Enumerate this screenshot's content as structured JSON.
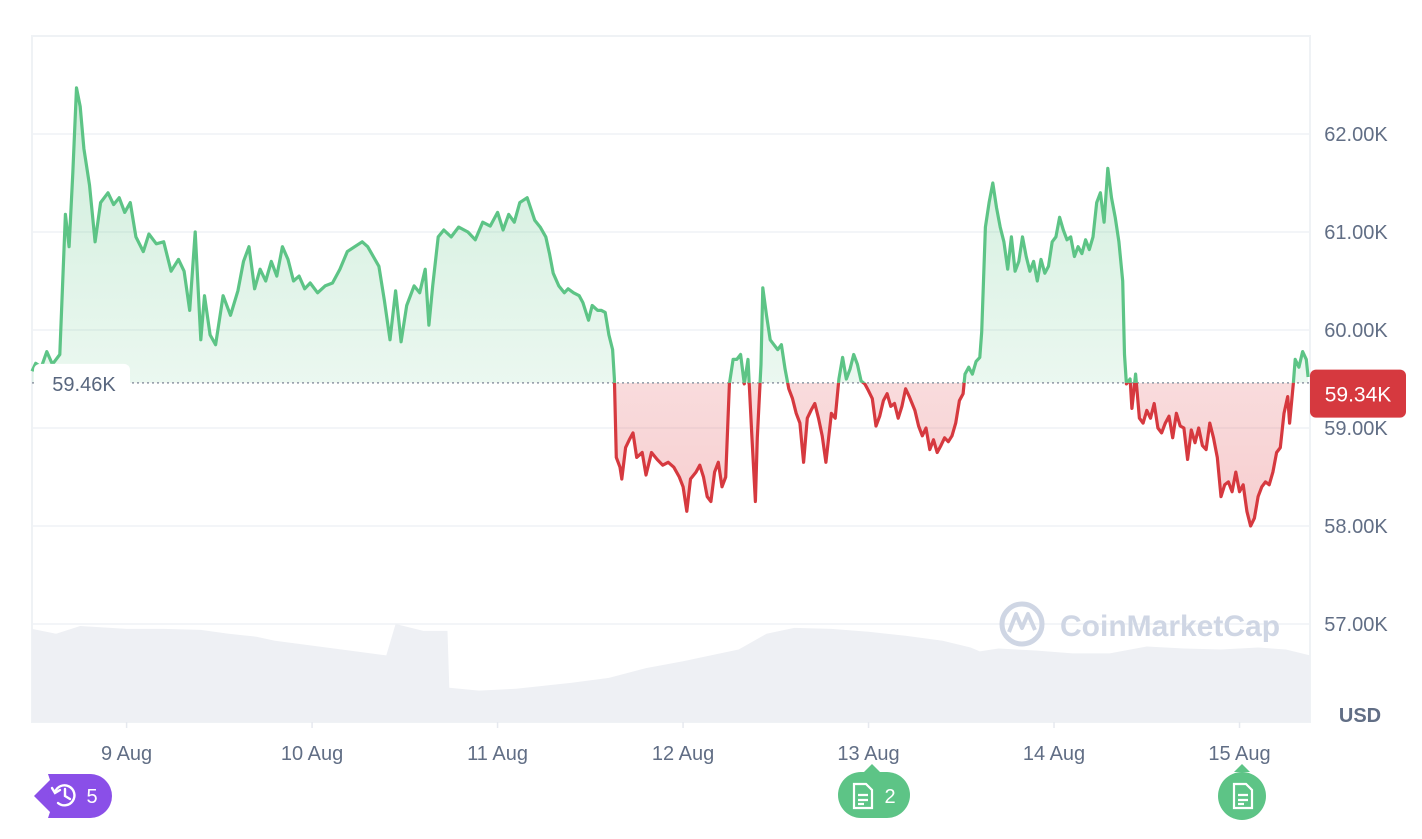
{
  "chart_data": {
    "type": "line",
    "x_tick_labels": [
      "9 Aug",
      "10 Aug",
      "11 Aug",
      "12 Aug",
      "13 Aug",
      "14 Aug",
      "15 Aug"
    ],
    "y_tick_labels": [
      "62.00K",
      "61.00K",
      "60.00K",
      "59.00K",
      "58.00K",
      "57.00K"
    ],
    "y_ticks": [
      62000,
      61000,
      60000,
      59000,
      58000,
      57000
    ],
    "ylim": [
      56000,
      63000
    ],
    "xlim_days": [
      8.49,
      15.38
    ],
    "currency_label": "USD",
    "baseline_value": 59460,
    "baseline_label": "59.46K",
    "current_value": 59340,
    "current_label": "59.34K",
    "grid": true,
    "colors": {
      "up": "#5dc486",
      "down": "#d6393f",
      "up_fill": "#5dc486",
      "down_fill": "#e35a5f",
      "volume": "#eef0f4",
      "grid": "#eff2f5",
      "badge_purple": "#8a4fe8",
      "badge_green": "#5dc486"
    },
    "price": [
      [
        8.49,
        59.58
      ],
      [
        8.51,
        59.66
      ],
      [
        8.54,
        59.62
      ],
      [
        8.57,
        59.78
      ],
      [
        8.6,
        59.65
      ],
      [
        8.64,
        59.75
      ],
      [
        8.67,
        61.18
      ],
      [
        8.69,
        60.85
      ],
      [
        8.71,
        61.6
      ],
      [
        8.73,
        62.47
      ],
      [
        8.75,
        62.28
      ],
      [
        8.77,
        61.85
      ],
      [
        8.8,
        61.48
      ],
      [
        8.83,
        60.9
      ],
      [
        8.86,
        61.3
      ],
      [
        8.9,
        61.4
      ],
      [
        8.93,
        61.28
      ],
      [
        8.96,
        61.35
      ],
      [
        8.99,
        61.2
      ],
      [
        9.02,
        61.3
      ],
      [
        9.05,
        60.95
      ],
      [
        9.09,
        60.8
      ],
      [
        9.12,
        60.98
      ],
      [
        9.16,
        60.88
      ],
      [
        9.2,
        60.9
      ],
      [
        9.24,
        60.6
      ],
      [
        9.28,
        60.72
      ],
      [
        9.31,
        60.6
      ],
      [
        9.34,
        60.2
      ],
      [
        9.37,
        61.0
      ],
      [
        9.4,
        59.9
      ],
      [
        9.42,
        60.35
      ],
      [
        9.45,
        59.95
      ],
      [
        9.48,
        59.85
      ],
      [
        9.52,
        60.35
      ],
      [
        9.56,
        60.15
      ],
      [
        9.6,
        60.4
      ],
      [
        9.63,
        60.7
      ],
      [
        9.66,
        60.85
      ],
      [
        9.69,
        60.42
      ],
      [
        9.72,
        60.62
      ],
      [
        9.75,
        60.5
      ],
      [
        9.78,
        60.7
      ],
      [
        9.81,
        60.55
      ],
      [
        9.84,
        60.85
      ],
      [
        9.87,
        60.72
      ],
      [
        9.9,
        60.5
      ],
      [
        9.93,
        60.55
      ],
      [
        9.96,
        60.42
      ],
      [
        9.99,
        60.48
      ],
      [
        10.03,
        60.38
      ],
      [
        10.07,
        60.45
      ],
      [
        10.11,
        60.48
      ],
      [
        10.15,
        60.62
      ],
      [
        10.19,
        60.8
      ],
      [
        10.23,
        60.85
      ],
      [
        10.27,
        60.9
      ],
      [
        10.3,
        60.85
      ],
      [
        10.33,
        60.75
      ],
      [
        10.36,
        60.65
      ],
      [
        10.39,
        60.3
      ],
      [
        10.42,
        59.9
      ],
      [
        10.45,
        60.4
      ],
      [
        10.48,
        59.88
      ],
      [
        10.51,
        60.25
      ],
      [
        10.55,
        60.45
      ],
      [
        10.58,
        60.38
      ],
      [
        10.61,
        60.62
      ],
      [
        10.63,
        60.05
      ],
      [
        10.65,
        60.45
      ],
      [
        10.68,
        60.95
      ],
      [
        10.71,
        61.02
      ],
      [
        10.75,
        60.95
      ],
      [
        10.79,
        61.05
      ],
      [
        10.84,
        61.0
      ],
      [
        10.88,
        60.92
      ],
      [
        10.92,
        61.1
      ],
      [
        10.96,
        61.06
      ],
      [
        11.0,
        61.2
      ],
      [
        11.03,
        61.02
      ],
      [
        11.06,
        61.18
      ],
      [
        11.09,
        61.1
      ],
      [
        11.12,
        61.3
      ],
      [
        11.16,
        61.35
      ],
      [
        11.2,
        61.12
      ],
      [
        11.23,
        61.05
      ],
      [
        11.26,
        60.95
      ],
      [
        11.28,
        60.78
      ],
      [
        11.3,
        60.58
      ],
      [
        11.33,
        60.45
      ],
      [
        11.36,
        60.38
      ],
      [
        11.38,
        60.42
      ],
      [
        11.41,
        60.38
      ],
      [
        11.44,
        60.35
      ],
      [
        11.46,
        60.28
      ],
      [
        11.49,
        60.1
      ],
      [
        11.51,
        60.25
      ],
      [
        11.54,
        60.2
      ],
      [
        11.56,
        60.2
      ],
      [
        11.58,
        60.18
      ],
      [
        11.6,
        59.95
      ],
      [
        11.62,
        59.8
      ],
      [
        11.63,
        59.5
      ],
      [
        11.64,
        58.7
      ],
      [
        11.66,
        58.6
      ],
      [
        11.67,
        58.48
      ],
      [
        11.69,
        58.8
      ],
      [
        11.71,
        58.88
      ],
      [
        11.73,
        58.95
      ],
      [
        11.75,
        58.7
      ],
      [
        11.78,
        58.75
      ],
      [
        11.8,
        58.52
      ],
      [
        11.83,
        58.75
      ],
      [
        11.86,
        58.68
      ],
      [
        11.89,
        58.62
      ],
      [
        11.92,
        58.65
      ],
      [
        11.95,
        58.6
      ],
      [
        11.98,
        58.5
      ],
      [
        12.0,
        58.4
      ],
      [
        12.02,
        58.15
      ],
      [
        12.04,
        58.48
      ],
      [
        12.07,
        58.55
      ],
      [
        12.09,
        58.62
      ],
      [
        12.11,
        58.5
      ],
      [
        12.13,
        58.3
      ],
      [
        12.15,
        58.25
      ],
      [
        12.17,
        58.55
      ],
      [
        12.19,
        58.65
      ],
      [
        12.21,
        58.4
      ],
      [
        12.23,
        58.5
      ],
      [
        12.25,
        59.45
      ],
      [
        12.27,
        59.7
      ],
      [
        12.29,
        59.7
      ],
      [
        12.31,
        59.75
      ],
      [
        12.33,
        59.45
      ],
      [
        12.35,
        59.7
      ],
      [
        12.37,
        58.95
      ],
      [
        12.39,
        58.25
      ],
      [
        12.4,
        58.9
      ],
      [
        12.42,
        59.65
      ],
      [
        12.43,
        60.43
      ],
      [
        12.45,
        60.15
      ],
      [
        12.47,
        59.9
      ],
      [
        12.49,
        59.85
      ],
      [
        12.51,
        59.8
      ],
      [
        12.53,
        59.85
      ],
      [
        12.55,
        59.6
      ],
      [
        12.57,
        59.4
      ],
      [
        12.59,
        59.3
      ],
      [
        12.61,
        59.15
      ],
      [
        12.63,
        59.05
      ],
      [
        12.65,
        58.65
      ],
      [
        12.67,
        59.1
      ],
      [
        12.69,
        59.18
      ],
      [
        12.71,
        59.25
      ],
      [
        12.73,
        59.1
      ],
      [
        12.75,
        58.92
      ],
      [
        12.77,
        58.65
      ],
      [
        12.8,
        59.15
      ],
      [
        12.82,
        59.1
      ],
      [
        12.84,
        59.5
      ],
      [
        12.86,
        59.72
      ],
      [
        12.88,
        59.5
      ],
      [
        12.9,
        59.6
      ],
      [
        12.92,
        59.75
      ],
      [
        12.94,
        59.65
      ],
      [
        12.96,
        59.48
      ],
      [
        12.98,
        59.45
      ],
      [
        13.0,
        59.38
      ],
      [
        13.02,
        59.3
      ],
      [
        13.04,
        59.02
      ],
      [
        13.06,
        59.12
      ],
      [
        13.08,
        59.28
      ],
      [
        13.1,
        59.35
      ],
      [
        13.12,
        59.22
      ],
      [
        13.14,
        59.25
      ],
      [
        13.16,
        59.1
      ],
      [
        13.18,
        59.22
      ],
      [
        13.2,
        59.4
      ],
      [
        13.22,
        59.32
      ],
      [
        13.25,
        59.18
      ],
      [
        13.27,
        59.02
      ],
      [
        13.29,
        58.92
      ],
      [
        13.31,
        59.0
      ],
      [
        13.33,
        58.78
      ],
      [
        13.35,
        58.88
      ],
      [
        13.37,
        58.75
      ],
      [
        13.39,
        58.82
      ],
      [
        13.41,
        58.9
      ],
      [
        13.43,
        58.86
      ],
      [
        13.45,
        58.92
      ],
      [
        13.47,
        59.05
      ],
      [
        13.49,
        59.28
      ],
      [
        13.51,
        59.35
      ],
      [
        13.52,
        59.55
      ],
      [
        13.54,
        59.62
      ],
      [
        13.56,
        59.55
      ],
      [
        13.58,
        59.68
      ],
      [
        13.6,
        59.72
      ],
      [
        13.61,
        59.98
      ],
      [
        13.62,
        60.5
      ],
      [
        13.63,
        61.05
      ],
      [
        13.65,
        61.3
      ],
      [
        13.67,
        61.5
      ],
      [
        13.69,
        61.25
      ],
      [
        13.71,
        61.05
      ],
      [
        13.73,
        60.9
      ],
      [
        13.75,
        60.62
      ],
      [
        13.77,
        60.95
      ],
      [
        13.79,
        60.6
      ],
      [
        13.81,
        60.7
      ],
      [
        13.83,
        60.95
      ],
      [
        13.85,
        60.75
      ],
      [
        13.87,
        60.6
      ],
      [
        13.89,
        60.7
      ],
      [
        13.91,
        60.5
      ],
      [
        13.93,
        60.72
      ],
      [
        13.95,
        60.58
      ],
      [
        13.97,
        60.65
      ],
      [
        13.99,
        60.9
      ],
      [
        14.01,
        60.95
      ],
      [
        14.03,
        61.15
      ],
      [
        14.05,
        61.02
      ],
      [
        14.07,
        60.92
      ],
      [
        14.09,
        60.95
      ],
      [
        14.11,
        60.75
      ],
      [
        14.13,
        60.85
      ],
      [
        14.15,
        60.78
      ],
      [
        14.17,
        60.92
      ],
      [
        14.19,
        60.82
      ],
      [
        14.21,
        60.95
      ],
      [
        14.23,
        61.3
      ],
      [
        14.25,
        61.4
      ],
      [
        14.27,
        61.1
      ],
      [
        14.29,
        61.65
      ],
      [
        14.31,
        61.35
      ],
      [
        14.33,
        61.15
      ],
      [
        14.35,
        60.9
      ],
      [
        14.37,
        60.5
      ],
      [
        14.38,
        59.75
      ],
      [
        14.39,
        59.45
      ],
      [
        14.41,
        59.5
      ],
      [
        14.42,
        59.2
      ],
      [
        14.44,
        59.55
      ],
      [
        14.46,
        59.1
      ],
      [
        14.48,
        59.05
      ],
      [
        14.5,
        59.18
      ],
      [
        14.52,
        59.1
      ],
      [
        14.54,
        59.25
      ],
      [
        14.56,
        59.0
      ],
      [
        14.58,
        58.95
      ],
      [
        14.6,
        59.05
      ],
      [
        14.62,
        59.12
      ],
      [
        14.64,
        58.9
      ],
      [
        14.66,
        59.15
      ],
      [
        14.68,
        59.02
      ],
      [
        14.7,
        59.0
      ],
      [
        14.72,
        58.68
      ],
      [
        14.74,
        58.98
      ],
      [
        14.76,
        58.85
      ],
      [
        14.78,
        59.0
      ],
      [
        14.8,
        58.82
      ],
      [
        14.82,
        58.78
      ],
      [
        14.84,
        59.05
      ],
      [
        14.86,
        58.9
      ],
      [
        14.88,
        58.7
      ],
      [
        14.9,
        58.3
      ],
      [
        14.92,
        58.42
      ],
      [
        14.94,
        58.45
      ],
      [
        14.96,
        58.35
      ],
      [
        14.98,
        58.55
      ],
      [
        15.0,
        58.35
      ],
      [
        15.02,
        58.42
      ],
      [
        15.04,
        58.15
      ],
      [
        15.06,
        58.0
      ],
      [
        15.08,
        58.08
      ],
      [
        15.1,
        58.3
      ],
      [
        15.12,
        58.4
      ],
      [
        15.14,
        58.45
      ],
      [
        15.16,
        58.42
      ],
      [
        15.18,
        58.55
      ],
      [
        15.2,
        58.75
      ],
      [
        15.22,
        58.8
      ],
      [
        15.24,
        59.15
      ],
      [
        15.26,
        59.32
      ],
      [
        15.27,
        59.05
      ],
      [
        15.29,
        59.45
      ],
      [
        15.3,
        59.7
      ],
      [
        15.32,
        59.62
      ],
      [
        15.34,
        59.78
      ],
      [
        15.36,
        59.7
      ],
      [
        15.37,
        59.52
      ]
    ],
    "volume": [
      [
        8.49,
        0.95
      ],
      [
        8.62,
        0.9
      ],
      [
        8.75,
        0.98
      ],
      [
        9.0,
        0.95
      ],
      [
        9.2,
        0.95
      ],
      [
        9.4,
        0.94
      ],
      [
        9.55,
        0.9
      ],
      [
        9.7,
        0.87
      ],
      [
        9.8,
        0.83
      ],
      [
        10.0,
        0.78
      ],
      [
        10.2,
        0.73
      ],
      [
        10.4,
        0.68
      ],
      [
        10.45,
        1.0
      ],
      [
        10.6,
        0.93
      ],
      [
        10.73,
        0.93
      ],
      [
        10.74,
        0.35
      ],
      [
        10.9,
        0.32
      ],
      [
        11.1,
        0.34
      ],
      [
        11.4,
        0.4
      ],
      [
        11.6,
        0.45
      ],
      [
        11.8,
        0.55
      ],
      [
        12.0,
        0.62
      ],
      [
        12.2,
        0.7
      ],
      [
        12.3,
        0.74
      ],
      [
        12.45,
        0.9
      ],
      [
        12.6,
        0.96
      ],
      [
        12.8,
        0.95
      ],
      [
        13.0,
        0.92
      ],
      [
        13.2,
        0.88
      ],
      [
        13.4,
        0.83
      ],
      [
        13.55,
        0.76
      ],
      [
        13.6,
        0.72
      ],
      [
        13.7,
        0.75
      ],
      [
        13.9,
        0.73
      ],
      [
        14.1,
        0.7
      ],
      [
        14.3,
        0.7
      ],
      [
        14.5,
        0.77
      ],
      [
        14.7,
        0.75
      ],
      [
        14.9,
        0.74
      ],
      [
        15.1,
        0.76
      ],
      [
        15.25,
        0.74
      ],
      [
        15.38,
        0.68
      ]
    ]
  },
  "badges": {
    "history_count": "5",
    "news_count_13aug": "2",
    "news_count_15aug": ""
  },
  "watermark": "CoinMarketCap"
}
